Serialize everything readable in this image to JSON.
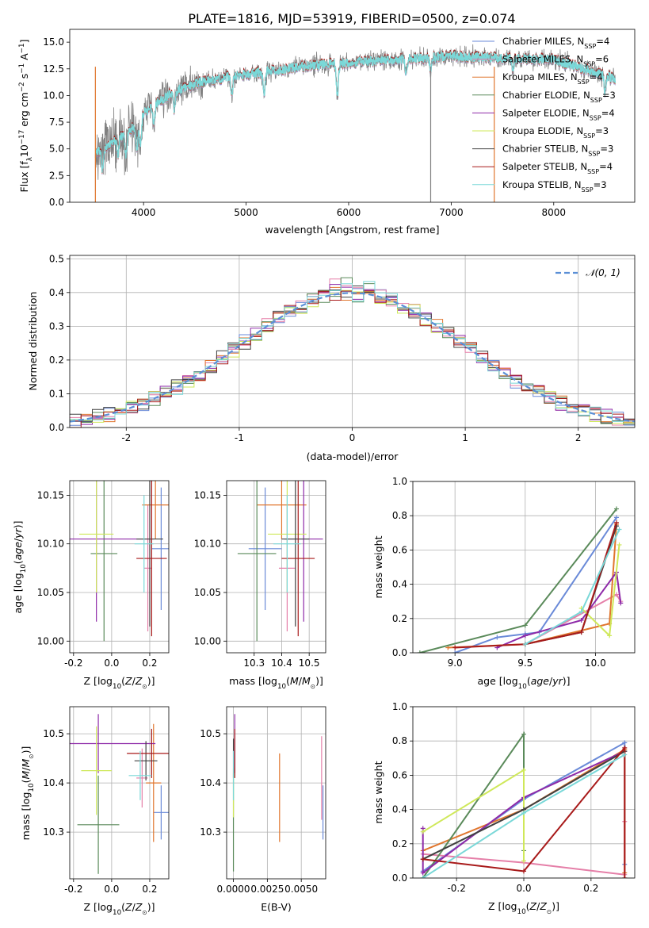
{
  "figure_title": "PLATE=1816, MJD=53919, FIBERID=0500, z=0.074",
  "colors": [
    "#6a8ad8",
    "#e57fa8",
    "#e0762e",
    "#5a8a5a",
    "#8e2aa8",
    "#cfe85a",
    "#404040",
    "#a81a1a",
    "#7ad8d8"
  ],
  "models": [
    "Chabrier MILES",
    "Salpeter MILES",
    "Kroupa MILES",
    "Chabrier ELODIE",
    "Salpeter ELODIE",
    "Kroupa ELODIE",
    "Chabrier STELIB",
    "Salpeter STELIB",
    "Kroupa STELIB"
  ],
  "legend_suffix": [
    ", N",
    "SSP",
    "="
  ],
  "n_ssp": [
    4,
    6,
    4,
    3,
    4,
    3,
    3,
    4,
    3
  ],
  "chart_data": [
    {
      "id": "spectrum",
      "type": "line",
      "title": "PLATE=1816, MJD=53919, FIBERID=0500, z=0.074",
      "xlabel": "wavelength [Angstrom, rest frame]",
      "ylabel": "Flux [f_λ10^-17 erg cm^-2 s^-1 A^-1]",
      "xlim": [
        3280,
        8790
      ],
      "ylim": [
        0,
        16.2
      ],
      "xticks": [
        4000,
        5000,
        6000,
        7000,
        8000
      ],
      "yticks": [
        0.0,
        2.5,
        5.0,
        7.5,
        10.0,
        12.5,
        15.0
      ],
      "legend": "right",
      "data_color": "#808080",
      "model_color": "#7ad8d8",
      "x_range_data": [
        3530,
        8600
      ],
      "continuum_anchors": [
        [
          3530,
          4.6
        ],
        [
          3700,
          5.6
        ],
        [
          3900,
          7.0
        ],
        [
          4000,
          8.4
        ],
        [
          4300,
          10.4
        ],
        [
          4600,
          11.4
        ],
        [
          5000,
          12.0
        ],
        [
          5600,
          12.8
        ],
        [
          6000,
          13.1
        ],
        [
          6500,
          13.4
        ],
        [
          7000,
          13.7
        ],
        [
          7500,
          13.5
        ],
        [
          8000,
          13.4
        ],
        [
          8600,
          11.6
        ]
      ],
      "dips": [
        [
          3600,
          2.0
        ],
        [
          3750,
          1.5
        ],
        [
          3830,
          2.2
        ],
        [
          3935,
          2.8
        ],
        [
          3970,
          2.6
        ],
        [
          4100,
          1.8
        ],
        [
          4300,
          1.6
        ],
        [
          4860,
          1.8
        ],
        [
          5175,
          2.0
        ],
        [
          5890,
          3.0
        ],
        [
          6560,
          1.2
        ],
        [
          6800,
          1.0
        ],
        [
          7600,
          1.3
        ],
        [
          8500,
          1.5
        ]
      ]
    },
    {
      "id": "residuals",
      "type": "histogram",
      "xlabel": "(data-model)/error",
      "ylabel": "Normed distribution",
      "xlim": [
        -2.5,
        2.5
      ],
      "ylim": [
        0,
        0.51
      ],
      "xticks": [
        -2,
        -1,
        0,
        1,
        2
      ],
      "yticks": [
        0.0,
        0.1,
        0.2,
        0.3,
        0.4,
        0.5
      ],
      "grid": true,
      "legend": "top-right",
      "legend_label": "N(0,1)",
      "bins": 50,
      "bin_width": 0.1
    },
    {
      "id": "z-age",
      "type": "errorbar",
      "xlabel": "Z [log10(Z/Z⊙)]",
      "ylabel": "age  [log10(age/yr)]",
      "xlim": [
        -0.22,
        0.3
      ],
      "ylim": [
        9.988,
        10.165
      ],
      "xticks": [
        -0.2,
        0.0,
        0.2
      ],
      "yticks": [
        10.0,
        10.05,
        10.1,
        10.15
      ],
      "grid": true,
      "points": [
        {
          "x": 0.26,
          "y": 10.095,
          "xerr": 0.05,
          "yerr": 0.063
        },
        {
          "x": 0.19,
          "y": 10.075,
          "xerr": 0.02,
          "yerr": 0.065
        },
        {
          "x": 0.23,
          "y": 10.14,
          "xerr": 0.07,
          "yerr": 0.035
        },
        {
          "x": -0.04,
          "y": 10.09,
          "xerr": 0.07,
          "yerr": 0.09
        },
        {
          "x": -0.08,
          "y": 10.105,
          "xerr": 0.3,
          "yerr": 0.085
        },
        {
          "x": -0.08,
          "y": 10.11,
          "xerr": 0.09,
          "yerr": 0.06
        },
        {
          "x": 0.2,
          "y": 10.105,
          "xerr": 0.07,
          "yerr": 0.09
        },
        {
          "x": 0.21,
          "y": 10.085,
          "xerr": 0.08,
          "yerr": 0.08
        },
        {
          "x": 0.17,
          "y": 10.1,
          "xerr": 0.05,
          "yerr": 0.05
        }
      ]
    },
    {
      "id": "mass-age",
      "type": "errorbar",
      "xlabel": "mass [log10(M/M⊙)]",
      "ylabel": "",
      "xlim": [
        10.2,
        10.56
      ],
      "ylim": [
        9.988,
        10.165
      ],
      "xticks": [
        10.3,
        10.4,
        10.5
      ],
      "yticks": [
        10.0,
        10.05,
        10.1,
        10.15
      ],
      "grid": true,
      "points": [
        {
          "x": 10.34,
          "y": 10.095,
          "xerr": 0.06,
          "yerr": 0.063
        },
        {
          "x": 10.42,
          "y": 10.075,
          "xerr": 0.03,
          "yerr": 0.065
        },
        {
          "x": 10.4,
          "y": 10.14,
          "xerr": 0.09,
          "yerr": 0.035
        },
        {
          "x": 10.31,
          "y": 10.09,
          "xerr": 0.07,
          "yerr": 0.09
        },
        {
          "x": 10.48,
          "y": 10.105,
          "xerr": 0.07,
          "yerr": 0.085
        },
        {
          "x": 10.42,
          "y": 10.11,
          "xerr": 0.07,
          "yerr": 0.06
        },
        {
          "x": 10.45,
          "y": 10.105,
          "xerr": 0.05,
          "yerr": 0.09
        },
        {
          "x": 10.46,
          "y": 10.085,
          "xerr": 0.06,
          "yerr": 0.08
        },
        {
          "x": 10.42,
          "y": 10.1,
          "xerr": 0.05,
          "yerr": 0.05
        }
      ]
    },
    {
      "id": "age-weight",
      "type": "line",
      "xlabel": "age  [log10(age/yr)]",
      "ylabel": "mass weight",
      "xlim": [
        8.7,
        10.28
      ],
      "ylim": [
        0,
        1.0
      ],
      "xticks": [
        9.0,
        9.5,
        10.0
      ],
      "yticks": [
        0.0,
        0.2,
        0.4,
        0.6,
        0.8,
        1.0
      ],
      "grid": true,
      "series": [
        {
          "x": [
            9.0,
            9.3,
            9.5,
            9.6,
            10.15
          ],
          "y": [
            0.0,
            0.09,
            0.11,
            0.12,
            0.79
          ]
        },
        {
          "x": [
            9.5,
            10.15,
            10.18
          ],
          "y": [
            0.05,
            0.34,
            0.3
          ]
        },
        {
          "x": [
            8.95,
            9.5,
            10.1,
            10.15
          ],
          "y": [
            0.03,
            0.05,
            0.17,
            0.75
          ]
        },
        {
          "x": [
            8.75,
            9.5,
            10.15
          ],
          "y": [
            0.0,
            0.16,
            0.84
          ]
        },
        {
          "x": [
            9.3,
            9.5,
            9.9,
            10.15,
            10.18
          ],
          "y": [
            0.03,
            0.1,
            0.19,
            0.47,
            0.29
          ]
        },
        {
          "x": [
            9.9,
            10.1,
            10.17
          ],
          "y": [
            0.26,
            0.1,
            0.63
          ]
        },
        {
          "x": [
            9.5,
            9.9,
            10.15
          ],
          "y": [
            0.05,
            0.12,
            0.74
          ]
        },
        {
          "x": [
            9.0,
            9.5,
            9.9,
            10.15
          ],
          "y": [
            0.03,
            0.05,
            0.12,
            0.76
          ]
        },
        {
          "x": [
            9.5,
            9.9,
            10.17
          ],
          "y": [
            0.05,
            0.24,
            0.72
          ]
        }
      ]
    },
    {
      "id": "z-mass",
      "type": "errorbar",
      "xlabel": "Z [log10(Z/Z⊙)]",
      "ylabel": "mass [log10(M/M⊙)]",
      "xlim": [
        -0.22,
        0.3
      ],
      "ylim": [
        10.205,
        10.555
      ],
      "xticks": [
        -0.2,
        0.0,
        0.2
      ],
      "yticks": [
        10.3,
        10.4,
        10.5
      ],
      "grid": true,
      "points": [
        {
          "x": 0.26,
          "y": 10.34,
          "xerr": 0.04,
          "yerr": 0.055
        },
        {
          "x": 0.16,
          "y": 10.41,
          "xerr": 0.03,
          "yerr": 0.06
        },
        {
          "x": 0.22,
          "y": 10.4,
          "xerr": 0.04,
          "yerr": 0.12
        },
        {
          "x": -0.07,
          "y": 10.315,
          "xerr": 0.11,
          "yerr": 0.1
        },
        {
          "x": -0.07,
          "y": 10.48,
          "xerr": 0.3,
          "yerr": 0.06
        },
        {
          "x": -0.08,
          "y": 10.425,
          "xerr": 0.08,
          "yerr": 0.09
        },
        {
          "x": 0.18,
          "y": 10.445,
          "xerr": 0.06,
          "yerr": 0.04
        },
        {
          "x": 0.21,
          "y": 10.46,
          "xerr": 0.13,
          "yerr": 0.05
        },
        {
          "x": 0.15,
          "y": 10.415,
          "xerr": 0.06,
          "yerr": 0.05
        }
      ]
    },
    {
      "id": "ebv-mass",
      "type": "errorbar",
      "xlabel": "E(B-V)",
      "ylabel": "",
      "xlim": [
        -0.0005,
        0.0068
      ],
      "ylim": [
        10.205,
        10.555
      ],
      "xticks": [
        0.0,
        0.0025,
        0.005
      ],
      "ytick_labels_only": [
        10.3,
        10.4,
        10.5
      ],
      "grid": true,
      "points": [
        {
          "x": 0.0066,
          "y": 10.34,
          "xerr": 0.0,
          "yerr": 0.055
        },
        {
          "x": 0.0065,
          "y": 10.41,
          "xerr": 0.0,
          "yerr": 0.085
        },
        {
          "x": 0.0034,
          "y": 10.37,
          "xerr": 0.0,
          "yerr": 0.09
        },
        {
          "x": 0.0,
          "y": 10.32,
          "xerr": 0.0,
          "yerr": 0.1
        },
        {
          "x": 0.0001,
          "y": 10.48,
          "xerr": 0.0,
          "yerr": 0.06
        },
        {
          "x": 0.0,
          "y": 10.38,
          "xerr": 0.0,
          "yerr": 0.05
        },
        {
          "x": 0.0,
          "y": 10.45,
          "xerr": 0.0,
          "yerr": 0.04
        },
        {
          "x": 0.0001,
          "y": 10.46,
          "xerr": 0.0,
          "yerr": 0.05
        },
        {
          "x": 0.0,
          "y": 10.415,
          "xerr": 0.0,
          "yerr": 0.05
        }
      ]
    },
    {
      "id": "z-weight",
      "type": "line",
      "xlabel": "Z [log10(Z/Z⊙)]",
      "ylabel": "mass weight",
      "xlim": [
        -0.33,
        0.33
      ],
      "ylim": [
        0,
        1.0
      ],
      "xticks": [
        -0.2,
        0.0,
        0.2
      ],
      "yticks": [
        0.0,
        0.2,
        0.4,
        0.6,
        0.8,
        1.0
      ],
      "grid": true,
      "series": [
        {
          "x": [
            -0.3,
            0.0,
            0.3,
            0.3
          ],
          "y": [
            0.04,
            0.46,
            0.79,
            0.08
          ]
        },
        {
          "x": [
            -0.3,
            0.0,
            0.3,
            0.3
          ],
          "y": [
            0.14,
            0.09,
            0.02,
            0.33
          ]
        },
        {
          "x": [
            -0.3,
            0.0,
            0.3,
            0.3
          ],
          "y": [
            0.16,
            0.4,
            0.75,
            0.03
          ]
        },
        {
          "x": [
            -0.3,
            0.0,
            0.0
          ],
          "y": [
            0.0,
            0.84,
            0.16
          ]
        },
        {
          "x": [
            -0.3,
            -0.3,
            0.0,
            0.3
          ],
          "y": [
            0.29,
            0.03,
            0.47,
            0.74
          ]
        },
        {
          "x": [
            -0.3,
            0.0,
            0.0
          ],
          "y": [
            0.27,
            0.63,
            0.1
          ]
        },
        {
          "x": [
            -0.3,
            0.0,
            0.3
          ],
          "y": [
            0.11,
            0.4,
            0.74
          ]
        },
        {
          "x": [
            -0.3,
            0.0,
            0.3,
            0.3
          ],
          "y": [
            0.11,
            0.04,
            0.76,
            0.0
          ]
        },
        {
          "x": [
            -0.3,
            0.0,
            0.3
          ],
          "y": [
            0.0,
            0.38,
            0.72
          ]
        }
      ]
    }
  ]
}
